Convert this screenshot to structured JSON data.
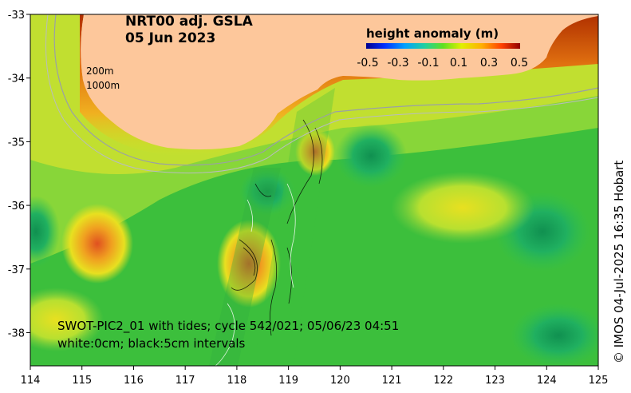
{
  "title_line1": "NRT00 adj. GSLA",
  "title_line2": "05 Jun 2023",
  "colorbar": {
    "title": "height anomaly (m)",
    "ticks": [
      "-0.5",
      "-0.3",
      "-0.1",
      "0.1",
      "0.3",
      "0.5"
    ]
  },
  "isobaths": [
    "200m",
    "1000m"
  ],
  "swot_note_line1": "SWOT-PIC2_01 with tides; cycle 542/021; 05/06/23 04:51",
  "swot_note_line2": "white:0cm; black:5cm intervals",
  "credit": "© IMOS 04-Jul-2025 16:35 Hobart",
  "x_ticks": [
    "114",
    "115",
    "116",
    "117",
    "118",
    "119",
    "120",
    "121",
    "122",
    "123",
    "124",
    "125"
  ],
  "y_ticks": [
    "-33",
    "-34",
    "-35",
    "-36",
    "-37",
    "-38"
  ],
  "colors": {
    "land": "#fdc79b",
    "background": "#3cbf3c"
  }
}
